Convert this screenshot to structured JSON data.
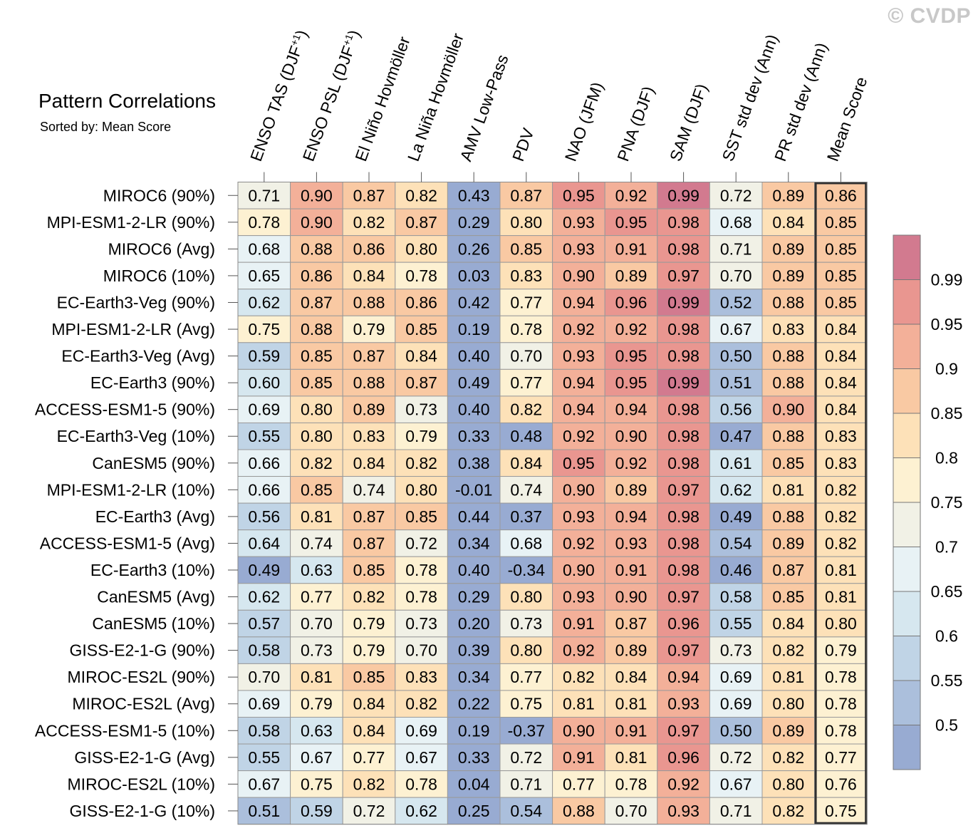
{
  "watermark": "© CVDP",
  "chart_data": {
    "type": "heatmap",
    "title": "Pattern Correlations",
    "subtitle": "Sorted by: Mean Score",
    "columns": [
      {
        "pre": "ENSO TAS (DJF",
        "sup": "+1",
        "post": ")"
      },
      {
        "pre": "ENSO PSL (DJF",
        "sup": "+1",
        "post": ")"
      },
      {
        "pre": "El Niño Hovmöller",
        "sup": "",
        "post": ""
      },
      {
        "pre": "La Niña Hovmöller",
        "sup": "",
        "post": ""
      },
      {
        "pre": "AMV Low-Pass",
        "sup": "",
        "post": ""
      },
      {
        "pre": "PDV",
        "sup": "",
        "post": ""
      },
      {
        "pre": "NAO (JFM)",
        "sup": "",
        "post": ""
      },
      {
        "pre": "PNA (DJF)",
        "sup": "",
        "post": ""
      },
      {
        "pre": "SAM (DJF)",
        "sup": "",
        "post": ""
      },
      {
        "pre": "SST std dev (Ann)",
        "sup": "",
        "post": ""
      },
      {
        "pre": "PR std dev (Ann)",
        "sup": "",
        "post": ""
      },
      {
        "pre": "Mean Score",
        "sup": "",
        "post": ""
      }
    ],
    "rows": [
      "MIROC6 (90%)",
      "MPI-ESM1-2-LR (90%)",
      "MIROC6 (Avg)",
      "MIROC6 (10%)",
      "EC-Earth3-Veg (90%)",
      "MPI-ESM1-2-LR (Avg)",
      "EC-Earth3-Veg (Avg)",
      "EC-Earth3 (90%)",
      "ACCESS-ESM1-5 (90%)",
      "EC-Earth3-Veg (10%)",
      "CanESM5 (90%)",
      "MPI-ESM1-2-LR (10%)",
      "EC-Earth3 (Avg)",
      "ACCESS-ESM1-5 (Avg)",
      "EC-Earth3 (10%)",
      "CanESM5 (Avg)",
      "CanESM5 (10%)",
      "GISS-E2-1-G (90%)",
      "MIROC-ES2L (90%)",
      "MIROC-ES2L (Avg)",
      "ACCESS-ESM1-5 (10%)",
      "GISS-E2-1-G (Avg)",
      "MIROC-ES2L (10%)",
      "GISS-E2-1-G (10%)"
    ],
    "values": [
      [
        "0.71",
        "0.90",
        "0.87",
        "0.82",
        "0.43",
        "0.87",
        "0.95",
        "0.92",
        "0.99",
        "0.72",
        "0.89",
        "0.86"
      ],
      [
        "0.78",
        "0.90",
        "0.82",
        "0.87",
        "0.29",
        "0.80",
        "0.93",
        "0.95",
        "0.98",
        "0.68",
        "0.84",
        "0.85"
      ],
      [
        "0.68",
        "0.88",
        "0.86",
        "0.80",
        "0.26",
        "0.85",
        "0.93",
        "0.91",
        "0.98",
        "0.71",
        "0.89",
        "0.85"
      ],
      [
        "0.65",
        "0.86",
        "0.84",
        "0.78",
        "0.03",
        "0.83",
        "0.90",
        "0.89",
        "0.97",
        "0.70",
        "0.89",
        "0.85"
      ],
      [
        "0.62",
        "0.87",
        "0.88",
        "0.86",
        "0.42",
        "0.77",
        "0.94",
        "0.96",
        "0.99",
        "0.52",
        "0.88",
        "0.85"
      ],
      [
        "0.75",
        "0.88",
        "0.79",
        "0.85",
        "0.19",
        "0.78",
        "0.92",
        "0.92",
        "0.98",
        "0.67",
        "0.83",
        "0.84"
      ],
      [
        "0.59",
        "0.85",
        "0.87",
        "0.84",
        "0.40",
        "0.70",
        "0.93",
        "0.95",
        "0.98",
        "0.50",
        "0.88",
        "0.84"
      ],
      [
        "0.60",
        "0.85",
        "0.88",
        "0.87",
        "0.49",
        "0.77",
        "0.94",
        "0.95",
        "0.99",
        "0.51",
        "0.88",
        "0.84"
      ],
      [
        "0.69",
        "0.80",
        "0.89",
        "0.73",
        "0.40",
        "0.82",
        "0.94",
        "0.94",
        "0.98",
        "0.56",
        "0.90",
        "0.84"
      ],
      [
        "0.55",
        "0.80",
        "0.83",
        "0.79",
        "0.33",
        "0.48",
        "0.92",
        "0.90",
        "0.98",
        "0.47",
        "0.88",
        "0.83"
      ],
      [
        "0.66",
        "0.82",
        "0.84",
        "0.82",
        "0.38",
        "0.84",
        "0.95",
        "0.92",
        "0.98",
        "0.61",
        "0.85",
        "0.83"
      ],
      [
        "0.66",
        "0.85",
        "0.74",
        "0.80",
        "-0.01",
        "0.74",
        "0.90",
        "0.89",
        "0.97",
        "0.62",
        "0.81",
        "0.82"
      ],
      [
        "0.56",
        "0.81",
        "0.87",
        "0.85",
        "0.44",
        "0.37",
        "0.93",
        "0.94",
        "0.98",
        "0.49",
        "0.88",
        "0.82"
      ],
      [
        "0.64",
        "0.74",
        "0.87",
        "0.72",
        "0.34",
        "0.68",
        "0.92",
        "0.93",
        "0.98",
        "0.54",
        "0.89",
        "0.82"
      ],
      [
        "0.49",
        "0.63",
        "0.85",
        "0.78",
        "0.40",
        "-0.34",
        "0.90",
        "0.91",
        "0.98",
        "0.46",
        "0.87",
        "0.81"
      ],
      [
        "0.62",
        "0.77",
        "0.82",
        "0.78",
        "0.29",
        "0.80",
        "0.93",
        "0.90",
        "0.97",
        "0.58",
        "0.85",
        "0.81"
      ],
      [
        "0.57",
        "0.70",
        "0.79",
        "0.73",
        "0.20",
        "0.73",
        "0.91",
        "0.87",
        "0.96",
        "0.55",
        "0.84",
        "0.80"
      ],
      [
        "0.58",
        "0.73",
        "0.79",
        "0.70",
        "0.39",
        "0.80",
        "0.92",
        "0.89",
        "0.97",
        "0.73",
        "0.82",
        "0.79"
      ],
      [
        "0.70",
        "0.81",
        "0.85",
        "0.83",
        "0.34",
        "0.77",
        "0.82",
        "0.84",
        "0.94",
        "0.69",
        "0.81",
        "0.78"
      ],
      [
        "0.69",
        "0.79",
        "0.84",
        "0.82",
        "0.22",
        "0.75",
        "0.81",
        "0.81",
        "0.93",
        "0.69",
        "0.80",
        "0.78"
      ],
      [
        "0.58",
        "0.63",
        "0.84",
        "0.69",
        "0.19",
        "-0.37",
        "0.90",
        "0.91",
        "0.97",
        "0.50",
        "0.89",
        "0.78"
      ],
      [
        "0.55",
        "0.67",
        "0.77",
        "0.67",
        "0.33",
        "0.72",
        "0.91",
        "0.81",
        "0.96",
        "0.72",
        "0.82",
        "0.77"
      ],
      [
        "0.67",
        "0.75",
        "0.82",
        "0.78",
        "0.04",
        "0.71",
        "0.77",
        "0.78",
        "0.92",
        "0.67",
        "0.80",
        "0.76"
      ],
      [
        "0.51",
        "0.59",
        "0.72",
        "0.62",
        "0.25",
        "0.54",
        "0.88",
        "0.70",
        "0.93",
        "0.71",
        "0.82",
        "0.75"
      ]
    ],
    "legend": {
      "position": "right",
      "levels": [
        0.5,
        0.55,
        0.6,
        0.65,
        0.7,
        0.75,
        0.8,
        0.85,
        0.9,
        0.95,
        0.99
      ],
      "labels": [
        "0.5",
        "0.55",
        "0.6",
        "0.65",
        "0.7",
        "0.75",
        "0.8",
        "0.85",
        "0.9",
        "0.95",
        "0.99"
      ],
      "colors": [
        "#98abd2",
        "#abbfdc",
        "#c0d4e6",
        "#d6e7ef",
        "#e8f2f5",
        "#f1f1e6",
        "#fdf1d2",
        "#fde1b8",
        "#f9c9a3",
        "#f3b099",
        "#e99690",
        "#d27a8f"
      ]
    },
    "highlight_column": "Mean Score",
    "cell_border_color": "#9a9a9a",
    "highlight_border_color": "#303030"
  }
}
